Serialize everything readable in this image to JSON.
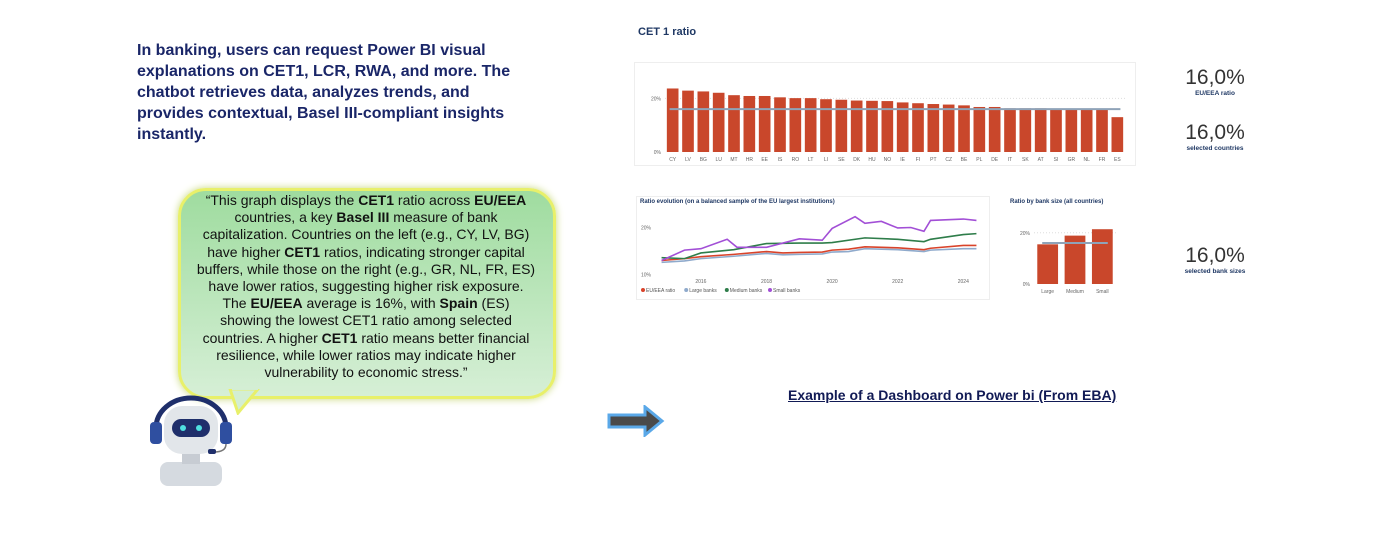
{
  "intro": "In banking, users can request Power BI visual explanations on CET1, LCR, RWA, and more. The chatbot retrieves data, analyzes trends, and provides contextual, Basel III-compliant insights instantly.",
  "bubble": [
    {
      "t": "“This graph displays the "
    },
    {
      "b": "CET1"
    },
    {
      "t": " ratio across "
    },
    {
      "b": "EU/EEA"
    },
    {
      "t": " countries, a key "
    },
    {
      "b": "Basel III"
    },
    {
      "t": " measure of bank capitalization. Countries on the left (e.g., CY, LV, BG) have higher "
    },
    {
      "b": "CET1"
    },
    {
      "t": " ratios, indicating stronger capital buffers, while those on the right (e.g., GR, NL, FR, ES) have lower ratios, suggesting higher risk exposure. The "
    },
    {
      "b": "EU/EEA"
    },
    {
      "t": " average is 16%, with "
    },
    {
      "b": "Spain"
    },
    {
      "t": " (ES) showing the lowest CET1 ratio among selected countries. A higher "
    },
    {
      "b": "CET1"
    },
    {
      "t": " ratio means better financial resilience, while lower ratios may indicate higher vulnerability to economic stress.”"
    }
  ],
  "caption": "Example of a Dashboard on Power bi (From EBA)",
  "kpis": [
    {
      "value": "16,0%",
      "label": "EU/EEA ratio"
    },
    {
      "value": "16,0%",
      "label": "selected countries"
    },
    {
      "value": "16,0%",
      "label": "selected bank sizes"
    }
  ],
  "colors": {
    "bar": "#c9472b",
    "avg": "#8fa3b8",
    "eu": "#d9432a",
    "large": "#8faacc",
    "medium": "#2e7d4a",
    "small": "#a24fd6"
  },
  "chart_data": [
    {
      "type": "bar",
      "title": "CET 1 ratio",
      "categories": [
        "CY",
        "LV",
        "BG",
        "LU",
        "MT",
        "HR",
        "EE",
        "IS",
        "RO",
        "LT",
        "LI",
        "SE",
        "DK",
        "HU",
        "NO",
        "IE",
        "FI",
        "PT",
        "CZ",
        "BE",
        "PL",
        "DE",
        "IT",
        "SK",
        "AT",
        "SI",
        "GR",
        "NL",
        "FR",
        "ES"
      ],
      "values": [
        23.7,
        22.9,
        22.6,
        22.1,
        21.2,
        20.9,
        20.9,
        20.4,
        20.1,
        20.1,
        19.7,
        19.5,
        19.2,
        19.1,
        19.0,
        18.5,
        18.2,
        17.9,
        17.7,
        17.4,
        16.8,
        16.8,
        16.3,
        16.3,
        16.3,
        16.2,
        16.2,
        16.2,
        16.2,
        13.0
      ],
      "reference_line": 16.0,
      "ylim": [
        0,
        25
      ],
      "yticks": [
        "0%",
        "20%"
      ]
    },
    {
      "type": "line",
      "title": "Ratio evolution (on a balanced sample of the EU largest institutions)",
      "xticks": [
        "2016",
        "2018",
        "2020",
        "2022",
        "2024"
      ],
      "yticks": [
        "10%",
        "20%"
      ],
      "ylim": [
        9.5,
        23.5
      ],
      "xlim": [
        2014.6,
        2024.6
      ],
      "series": [
        {
          "name": "EU/EEA ratio",
          "x": [
            2014.8,
            2015.5,
            2016,
            2017,
            2018,
            2018.5,
            2019,
            2019.7,
            2020,
            2020.5,
            2021,
            2022,
            2022.8,
            2023,
            2024,
            2024.4
          ],
          "values": [
            13.0,
            13.4,
            13.8,
            14.3,
            14.9,
            14.6,
            14.7,
            14.8,
            15.2,
            15.4,
            15.9,
            15.7,
            15.3,
            15.6,
            16.2,
            16.2
          ]
        },
        {
          "name": "Large banks",
          "x": [
            2014.8,
            2015.5,
            2016,
            2017,
            2018,
            2018.5,
            2019,
            2019.7,
            2020,
            2020.5,
            2021,
            2022,
            2022.8,
            2023,
            2024,
            2024.4
          ],
          "values": [
            12.6,
            12.9,
            13.4,
            13.9,
            14.5,
            14.2,
            14.3,
            14.4,
            14.8,
            14.9,
            15.5,
            15.3,
            14.9,
            15.2,
            15.5,
            15.5
          ]
        },
        {
          "name": "Medium banks",
          "x": [
            2014.8,
            2015.5,
            2016,
            2017,
            2018,
            2019,
            2019.7,
            2020,
            2021,
            2022,
            2022.8,
            2023,
            2024,
            2024.4
          ],
          "values": [
            13.6,
            13.4,
            14.6,
            15.3,
            16.6,
            16.7,
            16.7,
            16.8,
            17.8,
            17.5,
            17.0,
            17.5,
            18.5,
            18.7
          ]
        },
        {
          "name": "Small banks",
          "x": [
            2014.8,
            2015.5,
            2016,
            2016.8,
            2017.1,
            2018,
            2019,
            2019.7,
            2020,
            2020.7,
            2021,
            2021.5,
            2022,
            2022.4,
            2022.8,
            2023,
            2024,
            2024.4
          ],
          "values": [
            13.0,
            15.2,
            15.5,
            17.5,
            15.8,
            15.8,
            17.6,
            17.3,
            19.8,
            22.3,
            20.9,
            21.3,
            19.9,
            20.0,
            19.2,
            21.5,
            21.8,
            21.5
          ]
        }
      ]
    },
    {
      "type": "bar",
      "title": "Ratio by bank size (all countries)",
      "categories": [
        "Large",
        "Medium",
        "Small"
      ],
      "values": [
        15.5,
        18.9,
        21.4
      ],
      "reference_line": 16.0,
      "ylim": [
        0,
        25
      ],
      "yticks": [
        "0%",
        "20%"
      ]
    }
  ]
}
